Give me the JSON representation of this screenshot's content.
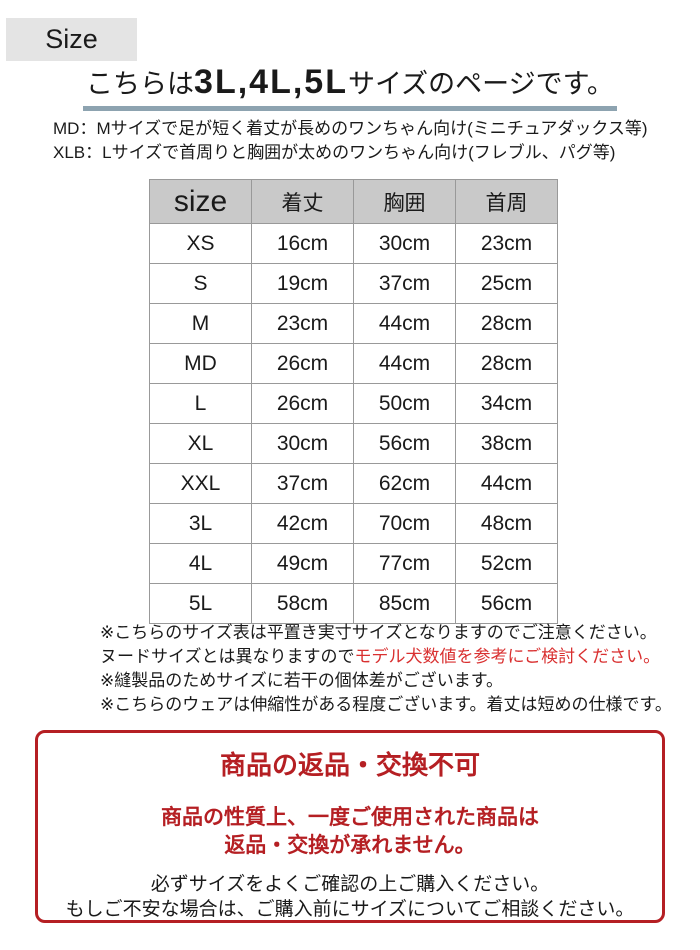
{
  "colors": {
    "label_bg": "#e4e4e4",
    "underline": "#8da3b0",
    "header_bg": "#c9c9c9",
    "note_red": "#d93030",
    "box_red": "#b51f23"
  },
  "page": {
    "section_label": "Size",
    "title": {
      "prefix": "こちらは",
      "highlight": "3L,4L,5L",
      "suffix": "サイズのページです。"
    },
    "guide_notes": [
      "MD：Mサイズで足が短く着丈が長めのワンちゃん向け(ミニチュアダックス等)",
      "XLB：Lサイズで首周りと胸囲が太めのワンちゃん向け(フレブル、パグ等)"
    ]
  },
  "size_table": {
    "headers": [
      "size",
      "着丈",
      "胸囲",
      "首周"
    ],
    "rows": [
      [
        "XS",
        "16cm",
        "30cm",
        "23cm"
      ],
      [
        "S",
        "19cm",
        "37cm",
        "25cm"
      ],
      [
        "M",
        "23cm",
        "44cm",
        "28cm"
      ],
      [
        "MD",
        "26cm",
        "44cm",
        "28cm"
      ],
      [
        "L",
        "26cm",
        "50cm",
        "34cm"
      ],
      [
        "XL",
        "30cm",
        "56cm",
        "38cm"
      ],
      [
        "XXL",
        "37cm",
        "62cm",
        "44cm"
      ],
      [
        "3L",
        "42cm",
        "70cm",
        "48cm"
      ],
      [
        "4L",
        "49cm",
        "77cm",
        "52cm"
      ],
      [
        "5L",
        "58cm",
        "85cm",
        "56cm"
      ]
    ]
  },
  "table_notes": {
    "line1": "※こちらのサイズ表は平置き実寸サイズとなりますのでご注意ください。",
    "line2_black": "ヌードサイズとは異なりますので",
    "line2_red": "モデル犬数値を参考にご検討ください。",
    "line3": "※縫製品のためサイズに若干の個体差がございます。",
    "line4": "※こちらのウェアは伸縮性がある程度ございます。着丈は短めの仕様です。"
  },
  "return_policy": {
    "title": "商品の返品・交換不可",
    "red_line1": "商品の性質上、一度ご使用された商品は",
    "red_line2": "返品・交換が承れません。",
    "black_line1": "必ずサイズをよくご確認の上ご購入ください。",
    "black_line2": "もしご不安な場合は、ご購入前にサイズについてご相談ください。"
  }
}
